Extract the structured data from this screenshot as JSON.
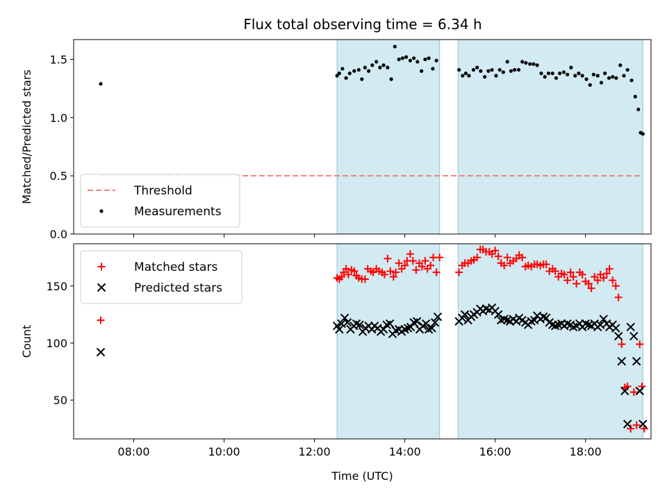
{
  "chart_data": [
    {
      "type": "scatter",
      "title": "Flux total observing time = 6.34 h",
      "xlabel": "",
      "ylabel": "Matched/Predicted stars",
      "x_unit": "hours UTC",
      "xlim": [
        6.67,
        19.45
      ],
      "ylim": [
        0,
        1.67
      ],
      "yticks": [
        "0.0",
        "0.5",
        "1.0",
        "1.5"
      ],
      "ytick_values": [
        0,
        0.5,
        1.0,
        1.5
      ],
      "legend_position": "lower-left",
      "shaded_intervals": [
        [
          12.5,
          14.77
        ],
        [
          15.18,
          19.27
        ]
      ],
      "shade_color": "#add8e6",
      "series": [
        {
          "name": "Threshold",
          "kind": "dashed-line",
          "color": "#f08080",
          "x": [
            7.27,
            19.27
          ],
          "y": [
            0.5,
            0.5
          ]
        },
        {
          "name": "Measurements",
          "kind": "point",
          "color": "#000000",
          "x": [
            7.27,
            12.5,
            12.55,
            12.62,
            12.7,
            12.78,
            12.88,
            12.98,
            13.05,
            13.12,
            13.2,
            13.28,
            13.37,
            13.45,
            13.53,
            13.62,
            13.7,
            13.78,
            13.87,
            13.95,
            14.03,
            14.12,
            14.2,
            14.28,
            14.37,
            14.45,
            14.53,
            14.62,
            14.7,
            15.2,
            15.28,
            15.35,
            15.42,
            15.52,
            15.6,
            15.68,
            15.77,
            15.85,
            15.93,
            16.02,
            16.1,
            16.18,
            16.27,
            16.35,
            16.43,
            16.52,
            16.6,
            16.68,
            16.77,
            16.85,
            16.93,
            17.02,
            17.1,
            17.18,
            17.27,
            17.35,
            17.43,
            17.52,
            17.6,
            17.68,
            17.77,
            17.85,
            17.93,
            18.02,
            18.1,
            18.18,
            18.27,
            18.35,
            18.43,
            18.52,
            18.6,
            18.68,
            18.77,
            18.85,
            18.93,
            19.02,
            19.1,
            19.17,
            19.22,
            19.27
          ],
          "y": [
            1.29,
            1.36,
            1.38,
            1.42,
            1.34,
            1.38,
            1.4,
            1.41,
            1.33,
            1.43,
            1.4,
            1.45,
            1.48,
            1.43,
            1.45,
            1.43,
            1.33,
            1.61,
            1.5,
            1.51,
            1.52,
            1.49,
            1.51,
            1.48,
            1.4,
            1.5,
            1.51,
            1.42,
            1.49,
            1.41,
            1.36,
            1.38,
            1.36,
            1.41,
            1.43,
            1.4,
            1.35,
            1.4,
            1.41,
            1.36,
            1.41,
            1.39,
            1.48,
            1.4,
            1.41,
            1.41,
            1.48,
            1.47,
            1.46,
            1.46,
            1.45,
            1.38,
            1.35,
            1.38,
            1.38,
            1.34,
            1.38,
            1.39,
            1.37,
            1.43,
            1.36,
            1.38,
            1.36,
            1.33,
            1.28,
            1.37,
            1.36,
            1.3,
            1.38,
            1.34,
            1.35,
            1.34,
            1.45,
            1.36,
            1.41,
            1.32,
            1.18,
            1.07,
            0.87,
            0.86
          ]
        }
      ]
    },
    {
      "type": "scatter",
      "title": "",
      "xlabel": "Time (UTC)",
      "ylabel": "Count",
      "x_unit": "hours UTC",
      "xlim": [
        6.67,
        19.45
      ],
      "ylim": [
        16,
        187
      ],
      "xticks": [
        "08:00",
        "10:00",
        "12:00",
        "14:00",
        "16:00",
        "18:00"
      ],
      "xtick_values": [
        8,
        10,
        12,
        14,
        16,
        18
      ],
      "yticks": [
        "50",
        "100",
        "150"
      ],
      "ytick_values": [
        50,
        100,
        150
      ],
      "legend_position": "upper-left",
      "shaded_intervals": [
        [
          12.5,
          14.77
        ],
        [
          15.18,
          19.27
        ]
      ],
      "shade_color": "#add8e6",
      "series": [
        {
          "name": "Matched stars",
          "kind": "plus",
          "color": "#ff0000",
          "x": [
            7.27,
            12.5,
            12.55,
            12.6,
            12.65,
            12.7,
            12.75,
            12.82,
            12.88,
            12.93,
            12.98,
            13.05,
            13.12,
            13.18,
            13.25,
            13.3,
            13.37,
            13.43,
            13.5,
            13.55,
            13.62,
            13.68,
            13.75,
            13.8,
            13.87,
            13.93,
            14.0,
            14.05,
            14.12,
            14.18,
            14.25,
            14.32,
            14.38,
            14.45,
            14.5,
            14.57,
            14.63,
            14.7,
            14.77,
            15.2,
            15.27,
            15.33,
            15.4,
            15.47,
            15.53,
            15.6,
            15.67,
            15.73,
            15.8,
            15.87,
            15.93,
            16.0,
            16.07,
            16.13,
            16.2,
            16.27,
            16.33,
            16.4,
            16.47,
            16.53,
            16.6,
            16.67,
            16.73,
            16.8,
            16.87,
            16.93,
            17.0,
            17.07,
            17.13,
            17.2,
            17.27,
            17.33,
            17.4,
            17.47,
            17.53,
            17.6,
            17.67,
            17.73,
            17.8,
            17.87,
            17.93,
            18.0,
            18.07,
            18.13,
            18.2,
            18.27,
            18.33,
            18.4,
            18.47,
            18.53,
            18.6,
            18.67,
            18.73,
            18.8,
            18.87,
            18.93,
            19.0,
            19.07,
            19.13,
            19.2,
            19.25,
            19.3
          ],
          "y": [
            120,
            157,
            156,
            158,
            162,
            165,
            160,
            164,
            163,
            159,
            157,
            156,
            156,
            165,
            163,
            162,
            165,
            163,
            162,
            160,
            174,
            163,
            158,
            162,
            170,
            165,
            168,
            172,
            178,
            172,
            164,
            170,
            167,
            172,
            165,
            168,
            175,
            162,
            175,
            162,
            168,
            170,
            170,
            172,
            173,
            175,
            182,
            182,
            180,
            180,
            178,
            181,
            176,
            170,
            168,
            175,
            170,
            172,
            174,
            177,
            175,
            167,
            168,
            167,
            169,
            169,
            168,
            169,
            169,
            163,
            165,
            163,
            158,
            161,
            160,
            155,
            162,
            158,
            152,
            162,
            160,
            154,
            152,
            148,
            158,
            155,
            160,
            157,
            161,
            165,
            155,
            150,
            140,
            99,
            61,
            62,
            25,
            57,
            28,
            99,
            62,
            25
          ],
          "x_note": ""
        },
        {
          "name": "Predicted stars",
          "kind": "x",
          "color": "#000000",
          "x": [
            7.27,
            12.5,
            12.55,
            12.6,
            12.67,
            12.73,
            12.8,
            12.87,
            12.93,
            13.0,
            13.07,
            13.13,
            13.2,
            13.27,
            13.33,
            13.4,
            13.47,
            13.53,
            13.6,
            13.67,
            13.73,
            13.8,
            13.87,
            13.93,
            14.0,
            14.07,
            14.13,
            14.2,
            14.27,
            14.33,
            14.4,
            14.47,
            14.53,
            14.6,
            14.67,
            14.73,
            15.2,
            15.27,
            15.33,
            15.4,
            15.47,
            15.53,
            15.6,
            15.67,
            15.73,
            15.8,
            15.87,
            15.93,
            16.0,
            16.07,
            16.13,
            16.2,
            16.27,
            16.33,
            16.4,
            16.47,
            16.53,
            16.6,
            16.67,
            16.73,
            16.8,
            16.87,
            16.93,
            17.0,
            17.07,
            17.13,
            17.2,
            17.27,
            17.33,
            17.4,
            17.47,
            17.53,
            17.6,
            17.67,
            17.73,
            17.8,
            17.87,
            17.93,
            18.0,
            18.07,
            18.13,
            18.2,
            18.27,
            18.33,
            18.4,
            18.47,
            18.53,
            18.6,
            18.67,
            18.73,
            18.8,
            18.87,
            18.93,
            19.0,
            19.07,
            19.13,
            19.2,
            19.27
          ],
          "y": [
            92,
            115,
            112,
            117,
            122,
            118,
            112,
            115,
            117,
            116,
            110,
            113,
            115,
            112,
            115,
            113,
            110,
            112,
            116,
            117,
            108,
            111,
            112,
            110,
            112,
            113,
            114,
            118,
            119,
            112,
            115,
            117,
            112,
            113,
            118,
            123,
            119,
            122,
            125,
            120,
            123,
            125,
            127,
            130,
            128,
            130,
            129,
            131,
            128,
            125,
            120,
            121,
            120,
            119,
            121,
            119,
            122,
            120,
            118,
            116,
            119,
            120,
            124,
            121,
            123,
            122,
            118,
            116,
            115,
            116,
            117,
            115,
            117,
            116,
            114,
            115,
            117,
            114,
            117,
            116,
            115,
            117,
            114,
            116,
            121,
            117,
            114,
            116,
            113,
            106,
            84,
            58,
            29,
            114,
            106,
            84,
            58,
            29
          ],
          "x_note": ""
        }
      ]
    }
  ]
}
